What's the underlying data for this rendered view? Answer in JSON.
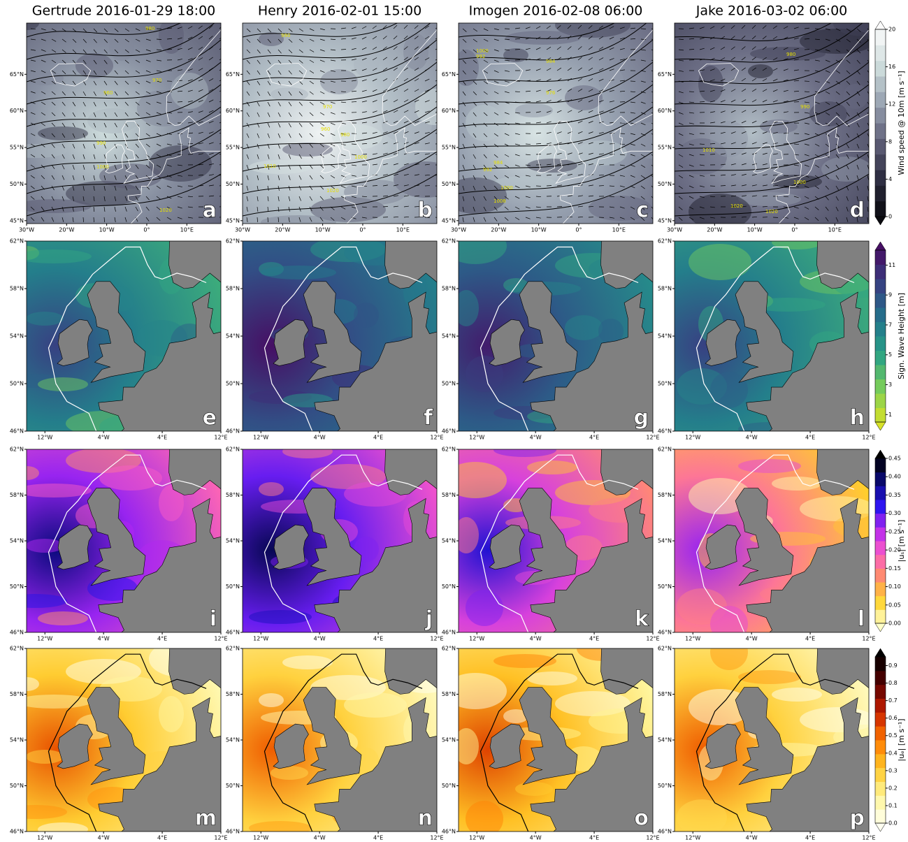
{
  "columns": [
    {
      "title": "Gertrude 2016-01-29 18:00"
    },
    {
      "title": "Henry 2016-02-01 15:00"
    },
    {
      "title": "Imogen 2016-02-08 06:00"
    },
    {
      "title": "Jake 2016-03-02 06:00"
    }
  ],
  "panel_letters": [
    [
      "a",
      "b",
      "c",
      "d"
    ],
    [
      "e",
      "f",
      "g",
      "h"
    ],
    [
      "i",
      "j",
      "k",
      "l"
    ],
    [
      "m",
      "n",
      "o",
      "p"
    ]
  ],
  "wind_axes": {
    "lat_ticks": [
      {
        "value": 65,
        "label": "65°N"
      },
      {
        "value": 60,
        "label": "60°N"
      },
      {
        "value": 55,
        "label": "55°N"
      },
      {
        "value": 50,
        "label": "50°N"
      },
      {
        "value": 45,
        "label": "45°N"
      }
    ],
    "lon_ticks": [
      {
        "value": -30,
        "label": "30°W"
      },
      {
        "value": -20,
        "label": "20°W"
      },
      {
        "value": -10,
        "label": "10°W"
      },
      {
        "value": 0,
        "label": "0°"
      },
      {
        "value": 10,
        "label": "10°E"
      }
    ]
  },
  "ocean_axes": {
    "lat_ticks": [
      {
        "value": 62,
        "label": "62°N"
      },
      {
        "value": 58,
        "label": "58°N"
      },
      {
        "value": 54,
        "label": "54°N"
      },
      {
        "value": 50,
        "label": "50°N"
      },
      {
        "value": 46,
        "label": "46°N"
      }
    ],
    "lon_ticks": [
      {
        "value": -12,
        "label": "12°W"
      },
      {
        "value": -4,
        "label": "4°W"
      },
      {
        "value": 4,
        "label": "4°E"
      },
      {
        "value": 12,
        "label": "12°E"
      }
    ]
  },
  "contour_labels": [
    [
      "980",
      "960",
      "970",
      "990",
      "1000",
      "1020"
    ],
    [
      "990",
      "970",
      "960",
      "980",
      "1010",
      "1000",
      "1020"
    ],
    [
      "1000",
      "992",
      "984",
      "976",
      "984",
      "992",
      "1000",
      "1008"
    ],
    [
      "980",
      "990",
      "1010",
      "1000",
      "1020",
      "1020"
    ]
  ],
  "colorbars": [
    {
      "label": "Wind speed @ 10m [m s⁻¹]",
      "lim": [
        0,
        20
      ],
      "ticks": [
        0,
        4,
        8,
        12,
        16,
        20
      ]
    },
    {
      "label": "Sign. Wave Height [m]",
      "lim": [
        0.5,
        12
      ],
      "ticks": [
        1,
        3,
        5,
        7,
        9,
        11
      ]
    },
    {
      "label": "|uₛ| [m s⁻¹]",
      "lim": [
        0,
        0.45
      ],
      "ticks": [
        {
          "value": 0,
          "label": "0.00"
        },
        {
          "value": 0.05,
          "label": "0.05"
        },
        {
          "value": 0.1,
          "label": "0.10"
        },
        {
          "value": 0.15,
          "label": "0.15"
        },
        {
          "value": 0.2,
          "label": "0.20"
        },
        {
          "value": 0.25,
          "label": "0.25"
        },
        {
          "value": 0.3,
          "label": "0.30"
        },
        {
          "value": 0.35,
          "label": "0.35"
        },
        {
          "value": 0.4,
          "label": "0.40"
        },
        {
          "value": 0.45,
          "label": "0.45"
        }
      ]
    },
    {
      "label": "|uₑ| [m s⁻¹]",
      "lim": [
        0,
        0.95
      ],
      "ticks": [
        {
          "value": 0,
          "label": "0.0"
        },
        {
          "value": 0.1,
          "label": "0.1"
        },
        {
          "value": 0.2,
          "label": "0.2"
        },
        {
          "value": 0.3,
          "label": "0.3"
        },
        {
          "value": 0.4,
          "label": "0.4"
        },
        {
          "value": 0.5,
          "label": "0.5"
        },
        {
          "value": 0.6,
          "label": "0.6"
        },
        {
          "value": 0.7,
          "label": "0.7"
        },
        {
          "value": 0.8,
          "label": "0.8"
        },
        {
          "value": 0.9,
          "label": "0.9"
        }
      ]
    }
  ]
}
